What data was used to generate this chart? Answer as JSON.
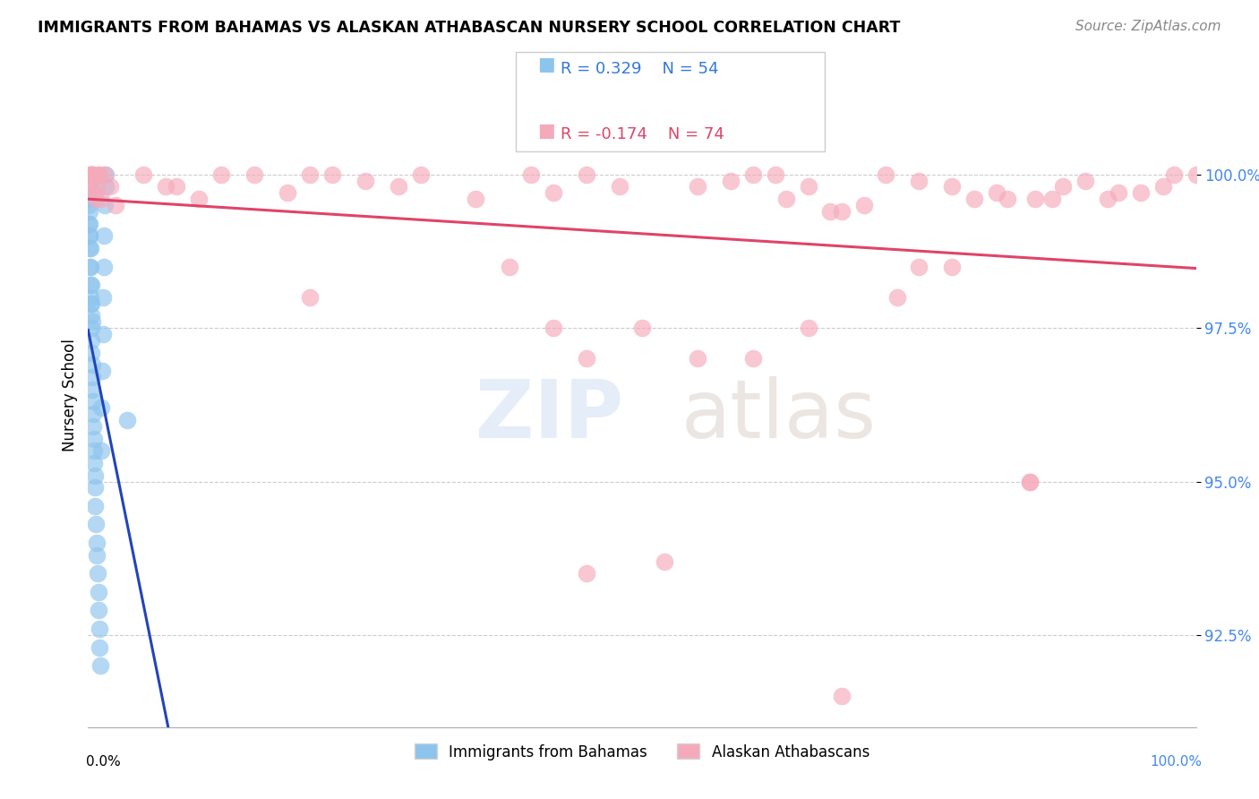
{
  "title": "IMMIGRANTS FROM BAHAMAS VS ALASKAN ATHABASCAN NURSERY SCHOOL CORRELATION CHART",
  "source": "Source: ZipAtlas.com",
  "ylabel": "Nursery School",
  "y_tick_labels": [
    "92.5%",
    "95.0%",
    "97.5%",
    "100.0%"
  ],
  "y_tick_values": [
    92.5,
    95.0,
    97.5,
    100.0
  ],
  "legend_label1": "Immigrants from Bahamas",
  "legend_label2": "Alaskan Athabascans",
  "R1": 0.329,
  "N1": 54,
  "R2": -0.174,
  "N2": 74,
  "color_blue": "#8DC4EE",
  "color_pink": "#F5AABB",
  "color_blue_line": "#2244BB",
  "color_pink_line": "#E04468",
  "color_label_blue": "#3377DD",
  "color_label_pink": "#E04468",
  "color_ytick": "#4488EE",
  "xlim": [
    0,
    100
  ],
  "ylim": [
    91.0,
    101.8
  ],
  "blue_x": [
    0.05,
    0.08,
    0.1,
    0.12,
    0.15,
    0.18,
    0.2,
    0.22,
    0.25,
    0.28,
    0.3,
    0.32,
    0.35,
    0.38,
    0.4,
    0.42,
    0.45,
    0.48,
    0.5,
    0.52,
    0.55,
    0.58,
    0.6,
    0.65,
    0.7,
    0.75,
    0.8,
    0.85,
    0.9,
    0.95,
    1.0,
    1.05,
    1.1,
    1.15,
    1.2,
    1.25,
    1.3,
    1.35,
    1.4,
    1.45,
    1.5,
    1.55,
    1.6,
    3.5,
    0.03,
    0.06,
    0.09,
    0.13,
    0.16,
    0.19,
    0.23,
    0.26,
    0.29,
    0.33
  ],
  "blue_y": [
    99.5,
    99.2,
    99.0,
    98.8,
    98.5,
    98.2,
    98.0,
    97.9,
    97.7,
    97.5,
    97.3,
    97.1,
    96.9,
    96.7,
    96.5,
    96.3,
    96.1,
    95.9,
    95.7,
    95.5,
    95.3,
    95.1,
    94.9,
    94.6,
    94.3,
    94.0,
    93.8,
    93.5,
    93.2,
    92.9,
    92.6,
    92.3,
    92.0,
    95.5,
    96.2,
    96.8,
    97.4,
    98.0,
    98.5,
    99.0,
    99.5,
    100.0,
    99.8,
    96.0,
    99.8,
    99.6,
    99.4,
    99.2,
    99.0,
    98.8,
    98.5,
    98.2,
    97.9,
    97.6
  ],
  "pink_x": [
    0.1,
    0.2,
    0.3,
    0.5,
    0.8,
    1.0,
    1.5,
    2.0,
    2.5,
    5.0,
    8.0,
    10.0,
    12.0,
    15.0,
    18.0,
    20.0,
    22.0,
    25.0,
    30.0,
    35.0,
    40.0,
    42.0,
    45.0,
    48.0,
    50.0,
    55.0,
    58.0,
    60.0,
    62.0,
    65.0,
    68.0,
    70.0,
    72.0,
    75.0,
    78.0,
    80.0,
    82.0,
    85.0,
    88.0,
    90.0,
    92.0,
    95.0,
    98.0,
    100.0,
    0.15,
    0.25,
    0.35,
    0.6,
    0.7,
    0.9,
    1.2,
    7.0,
    28.0,
    45.0,
    52.0,
    60.0,
    63.0,
    67.0,
    73.0,
    75.0,
    83.0,
    85.5,
    87.0,
    93.0,
    97.0,
    20.0,
    38.0,
    42.0,
    55.0,
    65.0,
    78.0,
    85.0,
    45.0,
    68.0
  ],
  "pink_y": [
    100.0,
    100.0,
    100.0,
    100.0,
    99.8,
    100.0,
    100.0,
    99.8,
    99.5,
    100.0,
    99.8,
    99.6,
    100.0,
    100.0,
    99.7,
    100.0,
    100.0,
    99.9,
    100.0,
    99.6,
    100.0,
    99.7,
    100.0,
    99.8,
    97.5,
    99.8,
    99.9,
    100.0,
    100.0,
    99.8,
    99.4,
    99.5,
    100.0,
    99.9,
    99.8,
    99.6,
    99.7,
    95.0,
    99.8,
    99.9,
    99.6,
    99.7,
    100.0,
    100.0,
    99.8,
    100.0,
    100.0,
    99.7,
    99.6,
    100.0,
    99.6,
    99.8,
    99.8,
    93.5,
    93.7,
    97.0,
    99.6,
    99.4,
    98.0,
    98.5,
    99.6,
    99.6,
    99.6,
    99.7,
    99.8,
    98.0,
    98.5,
    97.5,
    97.0,
    97.5,
    98.5,
    95.0,
    97.0,
    91.5
  ]
}
